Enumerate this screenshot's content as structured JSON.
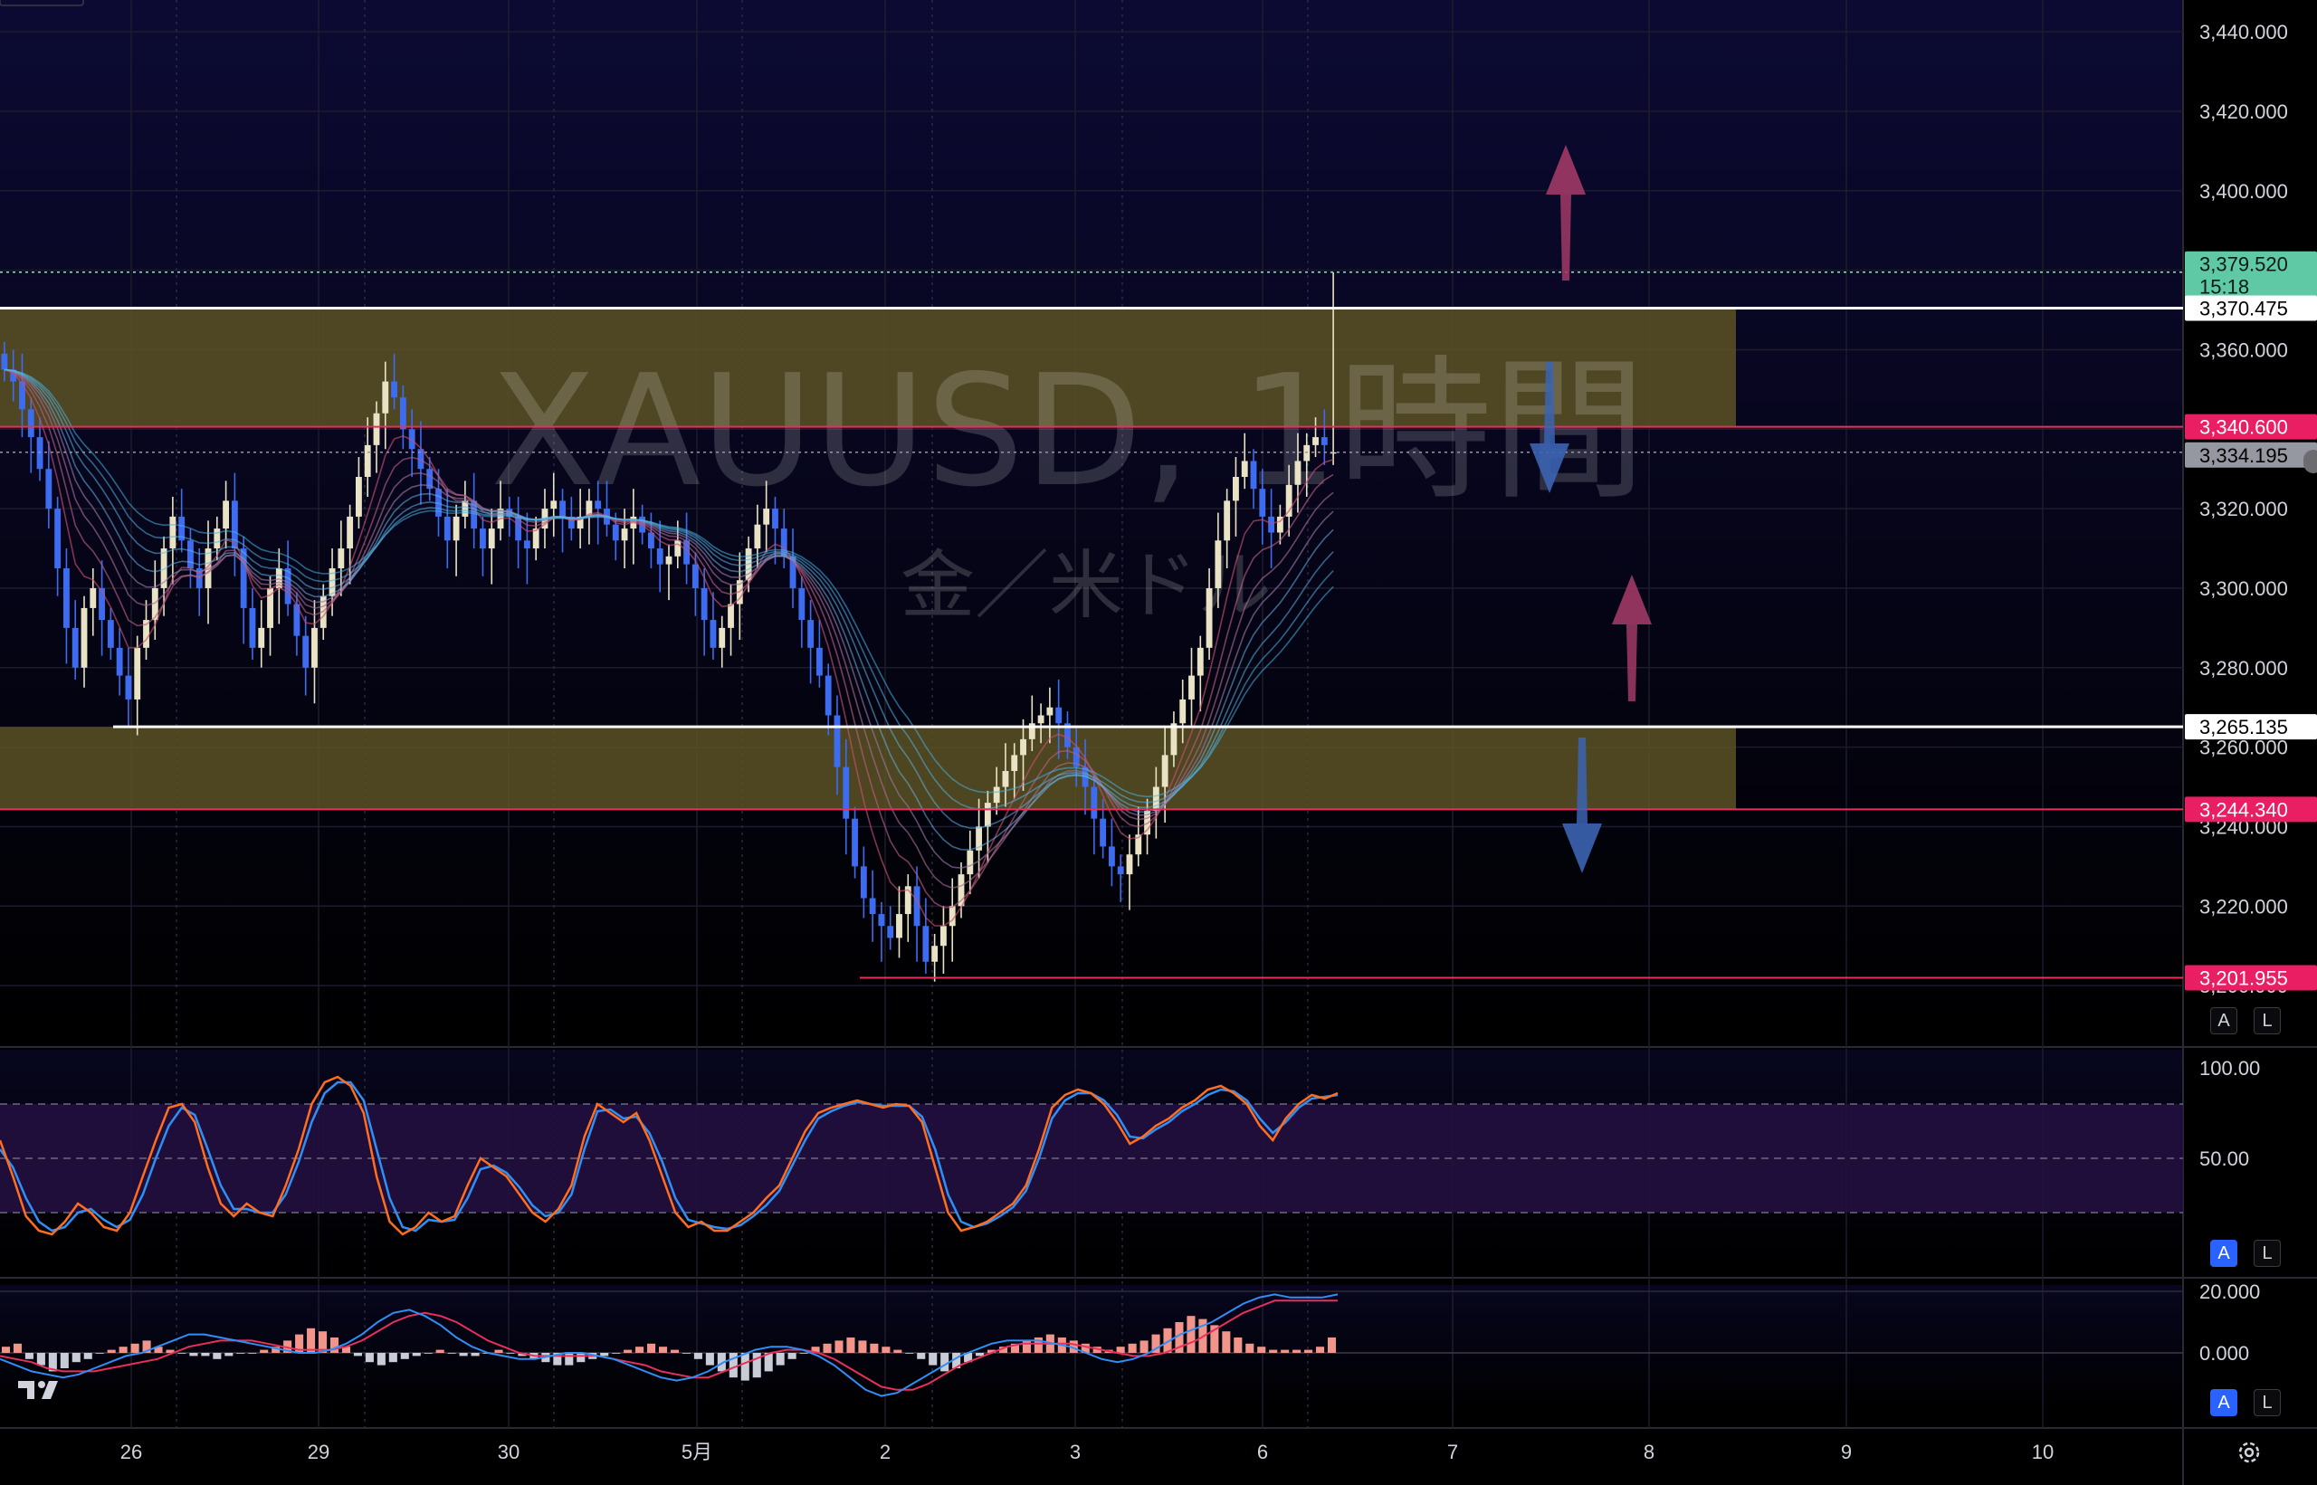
{
  "watermark": {
    "title": "XAUUSD, 1時間",
    "subtitle": "金／米ドル"
  },
  "colors": {
    "bg_main": "#07061e",
    "zone_fill": "#5c5224",
    "line_white": "#ffffff",
    "line_red": "#e8305c",
    "price_tag_red": "#e91e63",
    "price_tag_green": "#5fc9a5",
    "price_tag_gray": "#9598a1",
    "candle_up": "#e8e3c4",
    "candle_down": "#3d6cf0",
    "stoch_k": "#ff6d1f",
    "stoch_d": "#2f8ff5",
    "macd_line": "#2f8ff5",
    "signal_line": "#e8305c",
    "hist_pos": "#f1948a",
    "hist_neg": "#c8ccd6",
    "arrow_up": "#a03a66",
    "arrow_down": "#3b64b2"
  },
  "price_axis": {
    "ticks": [
      "3,440.000",
      "3,420.000",
      "3,400.000",
      "3,380.000",
      "3,360.000",
      "3,340.000",
      "3,320.000",
      "3,300.000",
      "3,280.000",
      "3,260.000",
      "3,240.000",
      "3,220.000",
      "3,200.000"
    ]
  },
  "price_tags": [
    {
      "label": "3,379.520",
      "sublabel": "15:18",
      "type": "green"
    },
    {
      "label": "3,370.475",
      "type": "white"
    },
    {
      "label": "3,340.600",
      "type": "red"
    },
    {
      "label": "3,334.195",
      "type": "gray"
    },
    {
      "label": "3,265.135",
      "type": "white"
    },
    {
      "label": "3,244.340",
      "type": "red"
    },
    {
      "label": "3,201.955",
      "type": "red"
    }
  ],
  "stoch_axis": {
    "ticks": [
      "100.00",
      "50.00"
    ]
  },
  "macd_axis": {
    "ticks": [
      "20.000",
      "0.000"
    ]
  },
  "date_axis": {
    "labels": [
      "26",
      "29",
      "30",
      "5月",
      "2",
      "3",
      "6",
      "7",
      "8",
      "9",
      "10"
    ]
  },
  "buttons": {
    "auto": "A",
    "log": "L"
  },
  "chart_data": {
    "type": "candlestick",
    "symbol": "XAUUSD",
    "timeframe": "1時間",
    "ylim": [
      3185,
      3448
    ],
    "x_labels": [
      "26",
      "29",
      "30",
      "5月",
      "2",
      "3",
      "6",
      "7",
      "8",
      "9",
      "10"
    ],
    "last_price": 3379.52,
    "countdown": "15:18",
    "resistance_zone": [
      3340.6,
      3370.475
    ],
    "support_zone": [
      3244.34,
      3265.135
    ],
    "horizontal_levels": [
      3370.475,
      3340.6,
      3265.135,
      3244.34,
      3201.955
    ],
    "close_path": [
      3355,
      3352,
      3345,
      3338,
      3330,
      3320,
      3305,
      3290,
      3280,
      3295,
      3300,
      3292,
      3285,
      3278,
      3272,
      3285,
      3292,
      3300,
      3310,
      3318,
      3312,
      3305,
      3300,
      3310,
      3315,
      3322,
      3310,
      3295,
      3285,
      3290,
      3300,
      3305,
      3296,
      3288,
      3280,
      3290,
      3298,
      3305,
      3310,
      3318,
      3328,
      3336,
      3344,
      3352,
      3348,
      3340,
      3335,
      3330,
      3325,
      3318,
      3312,
      3318,
      3322,
      3315,
      3310,
      3315,
      3320,
      3318,
      3312,
      3310,
      3315,
      3320,
      3322,
      3318,
      3315,
      3318,
      3322,
      3320,
      3316,
      3312,
      3315,
      3318,
      3314,
      3310,
      3306,
      3308,
      3312,
      3306,
      3300,
      3292,
      3285,
      3290,
      3296,
      3302,
      3310,
      3316,
      3320,
      3315,
      3308,
      3300,
      3292,
      3285,
      3278,
      3268,
      3255,
      3242,
      3230,
      3222,
      3218,
      3215,
      3212,
      3218,
      3225,
      3215,
      3206,
      3210,
      3215,
      3220,
      3228,
      3234,
      3240,
      3246,
      3250,
      3254,
      3258,
      3262,
      3266,
      3268,
      3270,
      3266,
      3260,
      3255,
      3250,
      3242,
      3235,
      3230,
      3228,
      3233,
      3238,
      3244,
      3250,
      3258,
      3266,
      3272,
      3278,
      3285,
      3300,
      3312,
      3322,
      3328,
      3332,
      3325,
      3318,
      3314,
      3318,
      3326,
      3332,
      3336,
      3338,
      3336,
      3334
    ],
    "stochastic": {
      "ylim": [
        0,
        100
      ],
      "levels": [
        80,
        50,
        20
      ],
      "k": [
        60,
        40,
        18,
        10,
        8,
        15,
        25,
        20,
        12,
        10,
        20,
        40,
        60,
        78,
        80,
        70,
        45,
        25,
        18,
        25,
        20,
        18,
        35,
        55,
        80,
        92,
        95,
        90,
        75,
        40,
        15,
        8,
        12,
        20,
        15,
        18,
        35,
        50,
        45,
        40,
        30,
        20,
        15,
        22,
        35,
        62,
        80,
        75,
        70,
        75,
        60,
        40,
        20,
        12,
        15,
        10,
        10,
        15,
        20,
        28,
        35,
        50,
        65,
        75,
        78,
        80,
        82,
        80,
        78,
        80,
        79,
        70,
        45,
        20,
        10,
        12,
        15,
        20,
        25,
        35,
        55,
        78,
        85,
        88,
        86,
        80,
        70,
        58,
        62,
        68,
        72,
        78,
        82,
        88,
        90,
        86,
        80,
        68,
        60,
        72,
        80,
        85,
        83,
        86
      ],
      "d": [
        55,
        45,
        28,
        15,
        10,
        12,
        20,
        22,
        16,
        12,
        16,
        30,
        50,
        68,
        78,
        74,
        55,
        35,
        22,
        22,
        20,
        20,
        30,
        48,
        70,
        86,
        92,
        92,
        82,
        55,
        28,
        12,
        10,
        16,
        15,
        16,
        28,
        44,
        46,
        42,
        34,
        24,
        18,
        20,
        30,
        55,
        76,
        77,
        72,
        73,
        64,
        48,
        28,
        16,
        14,
        12,
        11,
        13,
        18,
        24,
        32,
        46,
        60,
        72,
        76,
        79,
        81,
        80,
        79,
        79,
        79,
        73,
        55,
        30,
        15,
        12,
        14,
        18,
        23,
        32,
        50,
        72,
        82,
        86,
        86,
        82,
        74,
        62,
        61,
        66,
        70,
        76,
        80,
        85,
        88,
        87,
        82,
        72,
        64,
        70,
        78,
        83,
        84,
        85
      ]
    },
    "macd": {
      "zero_label": "0.000",
      "upper_label": "20.000",
      "histogram": [
        2,
        3,
        -2,
        -4,
        -6,
        -5,
        -3,
        -2,
        0,
        1,
        2,
        3,
        4,
        2,
        1,
        0,
        -1,
        -1,
        -2,
        -1,
        0,
        0,
        1,
        2,
        4,
        6,
        8,
        7,
        5,
        2,
        -1,
        -3,
        -4,
        -3,
        -2,
        -1,
        0,
        1,
        0,
        -1,
        -1,
        0,
        1,
        0,
        -1,
        -2,
        -3,
        -4,
        -4,
        -3,
        -2,
        -1,
        0,
        1,
        2,
        3,
        2,
        1,
        0,
        -2,
        -4,
        -6,
        -8,
        -9,
        -8,
        -6,
        -4,
        -2,
        0,
        2,
        3,
        4,
        5,
        4,
        3,
        2,
        1,
        0,
        -2,
        -4,
        -6,
        -5,
        -3,
        -1,
        1,
        2,
        3,
        4,
        5,
        6,
        5,
        4,
        3,
        2,
        1,
        2,
        3,
        4,
        6,
        8,
        10,
        12,
        11,
        9,
        7,
        5,
        3,
        2,
        1,
        1,
        1,
        1,
        2,
        5
      ],
      "macd_line": [
        -2,
        -4,
        -6,
        -7,
        -8,
        -7,
        -5,
        -3,
        -1,
        0,
        2,
        4,
        6,
        6,
        5,
        4,
        3,
        2,
        1,
        0,
        0,
        1,
        3,
        6,
        10,
        13,
        14,
        12,
        9,
        5,
        2,
        0,
        -1,
        -2,
        -2,
        -1,
        0,
        0,
        -1,
        -2,
        -4,
        -6,
        -8,
        -9,
        -8,
        -6,
        -3,
        -1,
        1,
        2,
        2,
        1,
        -1,
        -4,
        -8,
        -12,
        -14,
        -13,
        -10,
        -7,
        -4,
        -1,
        1,
        3,
        4,
        4,
        4,
        3,
        2,
        0,
        -2,
        -3,
        -2,
        0,
        3,
        6,
        8,
        10,
        13,
        16,
        18,
        19,
        18,
        18,
        18,
        19
      ],
      "signal_line": [
        -1,
        -2,
        -3,
        -5,
        -6,
        -6,
        -6,
        -5,
        -4,
        -3,
        -2,
        0,
        2,
        3,
        4,
        4,
        4,
        3,
        2,
        1,
        1,
        1,
        2,
        4,
        7,
        10,
        12,
        13,
        12,
        10,
        7,
        4,
        2,
        0,
        -1,
        -1,
        -1,
        -1,
        -1,
        -2,
        -3,
        -4,
        -6,
        -7,
        -8,
        -8,
        -6,
        -4,
        -2,
        0,
        1,
        1,
        0,
        -2,
        -5,
        -8,
        -11,
        -12,
        -12,
        -10,
        -7,
        -4,
        -2,
        0,
        2,
        3,
        3,
        3,
        3,
        2,
        1,
        0,
        -1,
        -1,
        0,
        2,
        4,
        7,
        10,
        13,
        15,
        17,
        17,
        17,
        17,
        17
      ]
    }
  }
}
